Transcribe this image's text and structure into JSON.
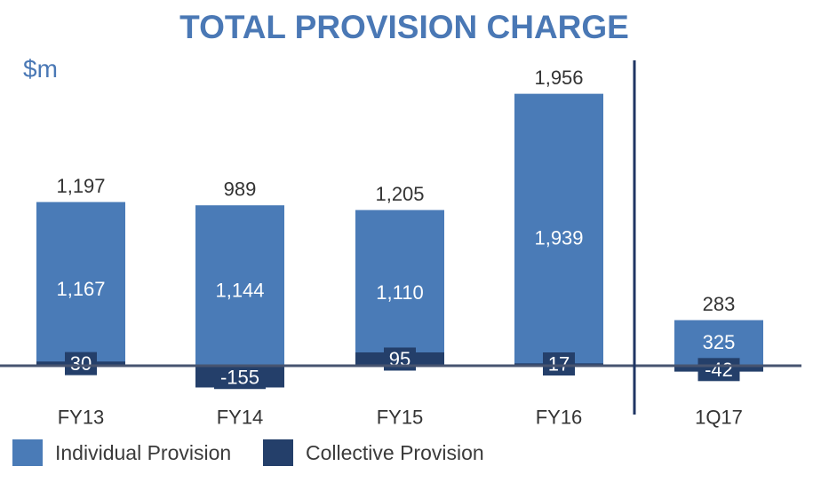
{
  "chart_data": {
    "type": "bar",
    "title": "TOTAL PROVISION CHARGE",
    "unit_label": "$m",
    "categories": [
      "FY13",
      "FY14",
      "FY15",
      "FY16",
      "1Q17"
    ],
    "series": [
      {
        "name": "Individual Provision",
        "values": [
          1167,
          1144,
          1110,
          1939,
          325
        ],
        "color": "#4a7bb7"
      },
      {
        "name": "Collective Provision",
        "values": [
          30,
          -155,
          95,
          17,
          -42
        ],
        "color": "#243f6a"
      }
    ],
    "totals": [
      1197,
      989,
      1205,
      1956,
      283
    ],
    "labels": {
      "totals": [
        "1,197",
        "989",
        "1,205",
        "1,956",
        "283"
      ],
      "individual": [
        "1,167",
        "1,144",
        "1,110",
        "1,939",
        "325"
      ],
      "collective": [
        "30",
        "-155",
        "95",
        "17",
        "-42"
      ]
    },
    "legend_position": "bottom-left",
    "grid": false
  }
}
